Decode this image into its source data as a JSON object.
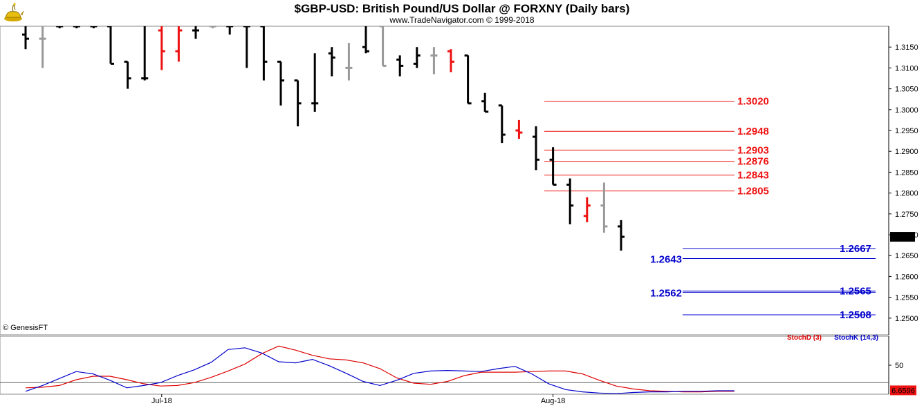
{
  "header": {
    "title": "$GBP-USD:  British Pound/US Dollar @ FORXNY  (Daily bars)",
    "subtitle": "www.TradeNavigator.com © 1999-2018",
    "copyright": "© GenesisFT"
  },
  "chart_data": [
    {
      "type": "ohlc",
      "title": "$GBP-USD:  British Pound/US Dollar @ FORXNY  (Daily bars)",
      "ylim": [
        1.246,
        1.32
      ],
      "yticks": [
        "1.3150",
        "1.3100",
        "1.3050",
        "1.3000",
        "1.2950",
        "1.2900",
        "1.2850",
        "1.2800",
        "1.2750",
        "1.2700",
        "1.2650",
        "1.2600",
        "1.2550",
        "1.2500"
      ],
      "xticks": [
        {
          "label": "Jul-18",
          "bar": 8
        },
        {
          "label": "Aug-18",
          "bar": 31
        }
      ],
      "last_price": "1.2695",
      "colors": {
        "down": "#000000",
        "up": "#999999",
        "red": "#ee1111",
        "blue": "#0000cc"
      },
      "bars": [
        {
          "o": 1.318,
          "h": 1.32,
          "l": 1.3145,
          "c": 1.317,
          "color": "down"
        },
        {
          "o": 1.317,
          "h": 1.32,
          "l": 1.31,
          "c": 1.317,
          "color": "up"
        },
        {
          "o": 1.32,
          "h": 1.32,
          "l": 1.3195,
          "c": 1.32,
          "color": "down"
        },
        {
          "o": 1.32,
          "h": 1.32,
          "l": 1.3195,
          "c": 1.32,
          "color": "down"
        },
        {
          "o": 1.32,
          "h": 1.32,
          "l": 1.3195,
          "c": 1.32,
          "color": "down"
        },
        {
          "o": 1.32,
          "h": 1.32,
          "l": 1.311,
          "c": 1.311,
          "color": "down"
        },
        {
          "o": 1.3115,
          "h": 1.3115,
          "l": 1.305,
          "c": 1.3075,
          "color": "down"
        },
        {
          "o": 1.3075,
          "h": 1.32,
          "l": 1.307,
          "c": 1.3075,
          "color": "down"
        },
        {
          "o": 1.319,
          "h": 1.32,
          "l": 1.3095,
          "c": 1.314,
          "color": "red"
        },
        {
          "o": 1.314,
          "h": 1.32,
          "l": 1.3115,
          "c": 1.319,
          "color": "red"
        },
        {
          "o": 1.319,
          "h": 1.32,
          "l": 1.317,
          "c": 1.319,
          "color": "down"
        },
        {
          "o": 1.32,
          "h": 1.32,
          "l": 1.3195,
          "c": 1.32,
          "color": "up"
        },
        {
          "o": 1.32,
          "h": 1.32,
          "l": 1.318,
          "c": 1.32,
          "color": "down"
        },
        {
          "o": 1.32,
          "h": 1.32,
          "l": 1.31,
          "c": 1.32,
          "color": "down"
        },
        {
          "o": 1.32,
          "h": 1.32,
          "l": 1.307,
          "c": 1.3115,
          "color": "down"
        },
        {
          "o": 1.3115,
          "h": 1.3115,
          "l": 1.301,
          "c": 1.307,
          "color": "down"
        },
        {
          "o": 1.307,
          "h": 1.307,
          "l": 1.296,
          "c": 1.3015,
          "color": "down"
        },
        {
          "o": 1.3015,
          "h": 1.3135,
          "l": 1.2995,
          "c": 1.3015,
          "color": "down"
        },
        {
          "o": 1.3135,
          "h": 1.315,
          "l": 1.308,
          "c": 1.3125,
          "color": "down"
        },
        {
          "o": 1.31,
          "h": 1.316,
          "l": 1.307,
          "c": 1.31,
          "color": "up"
        },
        {
          "o": 1.315,
          "h": 1.32,
          "l": 1.3135,
          "c": 1.314,
          "color": "down"
        },
        {
          "o": 1.32,
          "h": 1.32,
          "l": 1.3105,
          "c": 1.3105,
          "color": "up"
        },
        {
          "o": 1.312,
          "h": 1.313,
          "l": 1.308,
          "c": 1.3105,
          "color": "down"
        },
        {
          "o": 1.311,
          "h": 1.315,
          "l": 1.31,
          "c": 1.313,
          "color": "down"
        },
        {
          "o": 1.313,
          "h": 1.315,
          "l": 1.3085,
          "c": 1.313,
          "color": "up"
        },
        {
          "o": 1.314,
          "h": 1.3145,
          "l": 1.309,
          "c": 1.3115,
          "color": "red"
        },
        {
          "o": 1.313,
          "h": 1.313,
          "l": 1.3015,
          "c": 1.3015,
          "color": "down"
        },
        {
          "o": 1.302,
          "h": 1.304,
          "l": 1.2995,
          "c": 1.2995,
          "color": "down"
        },
        {
          "o": 1.301,
          "h": 1.301,
          "l": 1.292,
          "c": 1.294,
          "color": "down"
        },
        {
          "o": 1.295,
          "h": 1.2975,
          "l": 1.293,
          "c": 1.2945,
          "color": "red"
        },
        {
          "o": 1.2935,
          "h": 1.296,
          "l": 1.2855,
          "c": 1.288,
          "color": "down"
        },
        {
          "o": 1.288,
          "h": 1.291,
          "l": 1.282,
          "c": 1.282,
          "color": "down"
        },
        {
          "o": 1.282,
          "h": 1.2835,
          "l": 1.2725,
          "c": 1.277,
          "color": "down"
        },
        {
          "o": 1.2745,
          "h": 1.279,
          "l": 1.273,
          "c": 1.277,
          "color": "red"
        },
        {
          "o": 1.277,
          "h": 1.2825,
          "l": 1.2705,
          "c": 1.272,
          "color": "up"
        },
        {
          "o": 1.272,
          "h": 1.2735,
          "l": 1.2662,
          "c": 1.2695,
          "color": "down"
        }
      ],
      "levels": [
        {
          "value": 1.302,
          "label": "1.3020",
          "color": "red"
        },
        {
          "value": 1.2948,
          "label": "1.2948",
          "color": "red"
        },
        {
          "value": 1.2903,
          "label": "1.2903",
          "color": "red"
        },
        {
          "value": 1.2876,
          "label": "1.2876",
          "color": "red"
        },
        {
          "value": 1.2843,
          "label": "1.2843",
          "color": "red"
        },
        {
          "value": 1.2805,
          "label": "1.2805",
          "color": "red"
        },
        {
          "value": 1.2667,
          "label": "1.2667",
          "color": "blue",
          "side": "right"
        },
        {
          "value": 1.2643,
          "label": "1.2643",
          "color": "blue",
          "side": "left"
        },
        {
          "value": 1.2565,
          "label": "1.2565",
          "color": "blue",
          "side": "right"
        },
        {
          "value": 1.2562,
          "label": "1.2562",
          "color": "blue",
          "side": "left"
        },
        {
          "value": 1.2508,
          "label": "1.2508",
          "color": "blue",
          "side": "right"
        }
      ]
    },
    {
      "type": "line",
      "ylim": [
        0,
        100
      ],
      "yticks": [
        "50"
      ],
      "reference_line": 20,
      "last_value": "6.6596",
      "legend": [
        "StochD (3)",
        "StochK (14,3)"
      ],
      "series": [
        {
          "name": "StochD (3)",
          "color": "#dd0000",
          "values": [
            11,
            12,
            15,
            25,
            31,
            31,
            25,
            18,
            14,
            15,
            20,
            29,
            40,
            52,
            70,
            83,
            76,
            67,
            61,
            59,
            54,
            44,
            28,
            19,
            17,
            22,
            32,
            38,
            38,
            38,
            39,
            40,
            40,
            35,
            24,
            14,
            9,
            6,
            5,
            4,
            4,
            5,
            5
          ]
        },
        {
          "name": "StochK (14,3)",
          "color": "#0000cc",
          "values": [
            5,
            15,
            27,
            39,
            35,
            24,
            11,
            15,
            20,
            32,
            42,
            55,
            77,
            80,
            71,
            56,
            54,
            60,
            49,
            36,
            22,
            15,
            24,
            36,
            40,
            41,
            40,
            39,
            44,
            48,
            35,
            18,
            8,
            4,
            2,
            1,
            3,
            4,
            4,
            5,
            5,
            6,
            6
          ]
        }
      ]
    }
  ]
}
